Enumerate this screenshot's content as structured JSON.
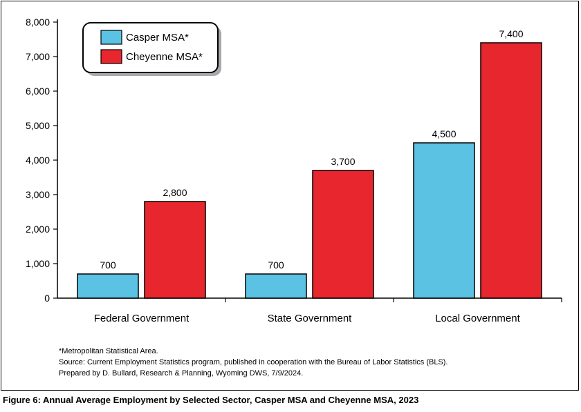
{
  "chart_data": {
    "type": "bar",
    "categories": [
      "Federal Government",
      "State Government",
      "Local Government"
    ],
    "series": [
      {
        "name": "Casper MSA*",
        "values": [
          700,
          700,
          4500
        ],
        "color": "#5bc2e3"
      },
      {
        "name": "Cheyenne MSA*",
        "values": [
          2800,
          3700,
          7400
        ],
        "color": "#e8262d"
      }
    ],
    "data_labels": [
      [
        "700",
        "700",
        "4,500"
      ],
      [
        "2,800",
        "3,700",
        "7,400"
      ]
    ],
    "y_ticks": [
      0,
      1000,
      2000,
      3000,
      4000,
      5000,
      6000,
      7000,
      8000
    ],
    "y_tick_labels": [
      "0",
      "1,000",
      "2,000",
      "3,000",
      "4,000",
      "5,000",
      "6,000",
      "7,000",
      "8,000"
    ],
    "ylim": [
      0,
      8000
    ],
    "xlabel": "",
    "ylabel": "",
    "grid": false,
    "legend_position": "top-left"
  },
  "notes": {
    "footnote": "*Metropolitan Statistical Area.",
    "source": "Source: Current Employment Statistics program, published in cooperation with the Bureau of Labor Statistics (BLS).",
    "prepared": "Prepared by D. Bullard, Research & Planning, Wyoming DWS, 7/9/2024."
  },
  "caption": "Figure 6: Annual Average Employment by Selected Sector, Casper MSA and Cheyenne MSA, 2023"
}
